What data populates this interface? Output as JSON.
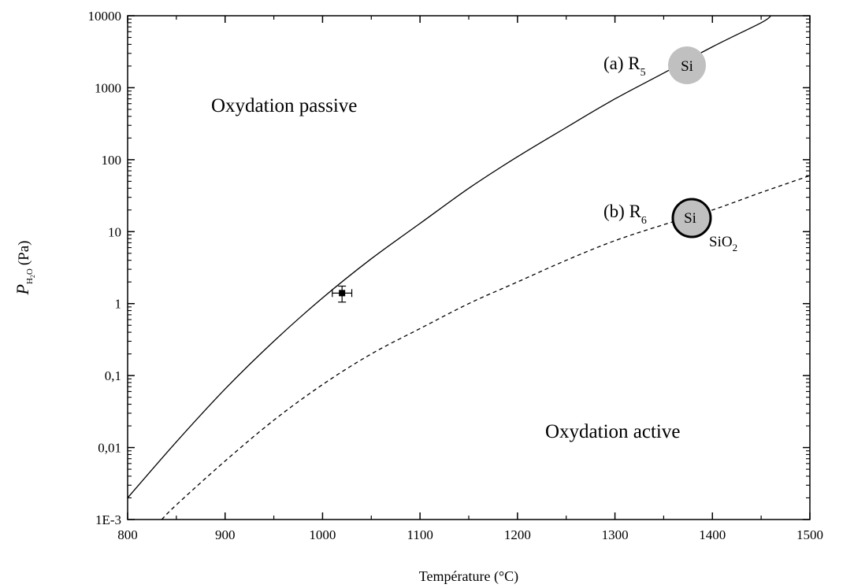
{
  "chart_data": {
    "type": "line",
    "xlabel": "Température (°C)",
    "ylabel_main": "P",
    "ylabel_sub": "H",
    "ylabel_sub2": "2",
    "ylabel_sub3": "O",
    "ylabel_unit": "(Pa)",
    "xlim": [
      800,
      1500
    ],
    "ylim": [
      0.001,
      10000
    ],
    "yscale": "log",
    "x_ticks": [
      800,
      900,
      1000,
      1100,
      1200,
      1300,
      1400,
      1500
    ],
    "x_tick_labels": [
      "800",
      "900",
      "1000",
      "1100",
      "1200",
      "1300",
      "1400",
      "1500"
    ],
    "y_ticks": [
      0.001,
      0.01,
      0.1,
      1,
      10,
      100,
      1000,
      10000
    ],
    "y_tick_labels": [
      "1E-3",
      "0,01",
      "0,1",
      "1",
      "10",
      "100",
      "1000",
      "10000"
    ],
    "series": [
      {
        "style": "solid",
        "x": [
          800,
          850,
          900,
          950,
          1000,
          1050,
          1100,
          1150,
          1200,
          1250,
          1300,
          1350,
          1400,
          1450,
          1460
        ],
        "y": [
          0.002,
          0.012,
          0.065,
          0.3,
          1.2,
          4.2,
          13,
          40,
          110,
          280,
          700,
          1600,
          3700,
          8000,
          10000
        ]
      },
      {
        "style": "dashed",
        "x": [
          835,
          850,
          900,
          950,
          1000,
          1050,
          1100,
          1150,
          1200,
          1250,
          1300,
          1350,
          1400,
          1450,
          1500
        ],
        "y": [
          0.001,
          0.0016,
          0.0065,
          0.024,
          0.075,
          0.2,
          0.45,
          1.0,
          2.0,
          4.0,
          7.5,
          12.5,
          20,
          35,
          60
        ]
      }
    ],
    "point": {
      "x": 1020,
      "y": 1.4,
      "x_err": 10,
      "y_err_low": 0.35,
      "y_err_high": 0.35
    },
    "annotations": {
      "region_passive": "Oxydation passive",
      "region_active": "Oxydation active",
      "a_label": "(a) R",
      "a_sub": "5",
      "b_label": "(b) R",
      "b_sub": "6",
      "si_a": "Si",
      "si_b": "Si",
      "sio2_main": "SiO",
      "sio2_sub": "2"
    },
    "colors": {
      "circle_fill": "#c0c0c0",
      "line": "#000000"
    },
    "grid": false
  }
}
